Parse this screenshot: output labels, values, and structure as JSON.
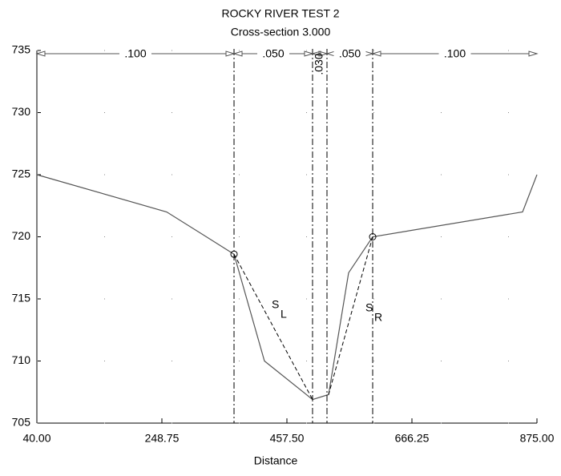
{
  "chart_data": {
    "type": "line",
    "title": "ROCKY RIVER  TEST 2",
    "subtitle": "Cross-section 3.000",
    "xlabel": "Distance",
    "x": [
      40,
      256.8,
      369.2,
      420,
      500.3,
      527.1,
      560.5,
      600.7,
      851,
      875
    ],
    "values": [
      725,
      722,
      718.6,
      710,
      706.9,
      707.3,
      717.1,
      720,
      722,
      725
    ],
    "color": "#555555",
    "xlim": [
      40,
      875
    ],
    "ylim": [
      705,
      735
    ],
    "xticks": [
      {
        "value": 40,
        "label": "40.00"
      },
      {
        "value": 248.75,
        "label": "248.75"
      },
      {
        "value": 457.5,
        "label": "457.50"
      },
      {
        "value": 666.25,
        "label": "666.25"
      },
      {
        "value": 875,
        "label": "875.00"
      }
    ],
    "yticks": [
      705,
      710,
      715,
      720,
      725,
      730,
      735
    ],
    "grid": true,
    "n_breaks": [
      369.2,
      500.3,
      524.4,
      600.7
    ],
    "n_values": [
      {
        "value": 0.1,
        "label": ".100"
      },
      {
        "value": 0.05,
        "label": ".050"
      },
      {
        "value": 0.03,
        "label": ".030"
      },
      {
        "value": 0.05,
        "label": ".050"
      },
      {
        "value": 0.1,
        "label": ".100"
      }
    ],
    "slope_labels": [
      {
        "main": "S",
        "sub": "L"
      },
      {
        "main": "S",
        "sub": "R"
      }
    ]
  }
}
